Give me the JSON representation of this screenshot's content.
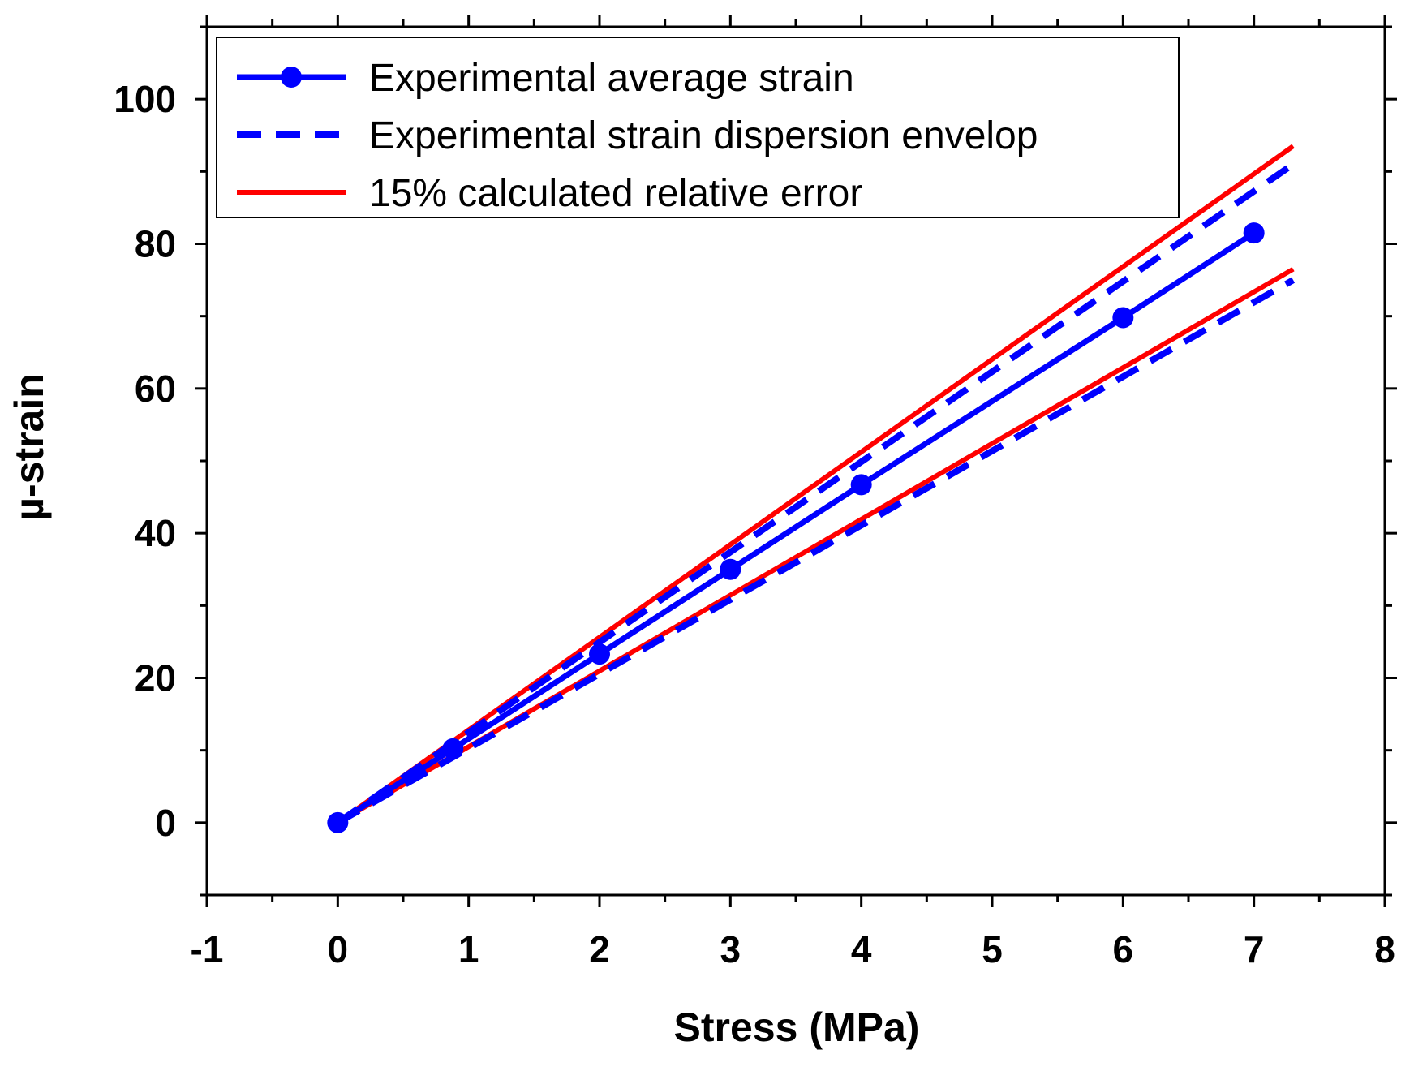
{
  "chart_data": {
    "type": "line",
    "title": "",
    "xlabel": "Stress (MPa)",
    "ylabel": "µ-strain",
    "xlim": [
      -1,
      8
    ],
    "ylim": [
      -10,
      110
    ],
    "xticks": [
      "-1",
      "0",
      "1",
      "2",
      "3",
      "4",
      "5",
      "6",
      "7",
      "8"
    ],
    "yticks": [
      "0",
      "20",
      "40",
      "60",
      "80",
      "100"
    ],
    "legend_position": "top-left",
    "series": [
      {
        "name": "Experimental average strain",
        "color": "#0000ff",
        "style": "solid-markers",
        "x": [
          0,
          0.88,
          2,
          3,
          4,
          6,
          7
        ],
        "y": [
          0,
          10.2,
          23.3,
          35,
          46.7,
          69.8,
          81.5
        ]
      },
      {
        "name": "Experimental strain dispersion envelop",
        "color": "#0000ff",
        "style": "dashed",
        "x": [
          0,
          7.3
        ],
        "y": [
          0,
          91
        ]
      },
      {
        "name": "Experimental strain dispersion envelop (lower)",
        "color": "#0000ff",
        "style": "dashed",
        "legend": false,
        "x": [
          0,
          7.3
        ],
        "y": [
          0,
          75
        ]
      },
      {
        "name": "15% calculated relative error",
        "color": "#ff0000",
        "style": "solid",
        "x": [
          0,
          7.3
        ],
        "y": [
          0,
          93.5
        ]
      },
      {
        "name": "15% calculated relative error (lower)",
        "color": "#ff0000",
        "style": "solid",
        "legend": false,
        "x": [
          0,
          7.3
        ],
        "y": [
          0,
          76.5
        ]
      }
    ]
  }
}
